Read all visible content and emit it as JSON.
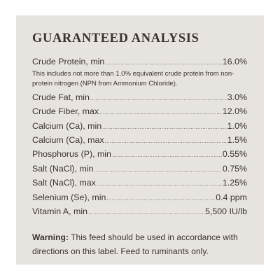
{
  "title": "GUARANTEED ANALYSIS",
  "rows": [
    {
      "label": "Crude Protein, min",
      "value": "16.0%"
    },
    {
      "label": "Crude Fat, min",
      "value": "3.0%"
    },
    {
      "label": "Crude Fiber, max",
      "value": "12.0%"
    },
    {
      "label": "Calcium (Ca), min",
      "value": "1.0%"
    },
    {
      "label": "Calcium (Ca), max",
      "value": "1.5%"
    },
    {
      "label": "Phosphorus (P), min",
      "value": "0.55%"
    },
    {
      "label": "Salt (NaCl), min",
      "value": "0.75%"
    },
    {
      "label": "Salt (NaCl), max",
      "value": "1.25%"
    },
    {
      "label": "Selenium (Se), min",
      "value": "0.4 ppm"
    },
    {
      "label": "Vitamin A, min",
      "value": "5,500 IU/lb"
    }
  ],
  "protein_note": "This includes not more than 1.0% equivalent crude protein from non-protein nitrogen (NPN from Ammonium Chloride).",
  "warning": {
    "label": "Warning:",
    "text": "This feed should be used in accordance with directions on this label. Feed to ruminants only."
  },
  "colors": {
    "panel_background": "#e7e3df",
    "text": "#3a3532"
  }
}
